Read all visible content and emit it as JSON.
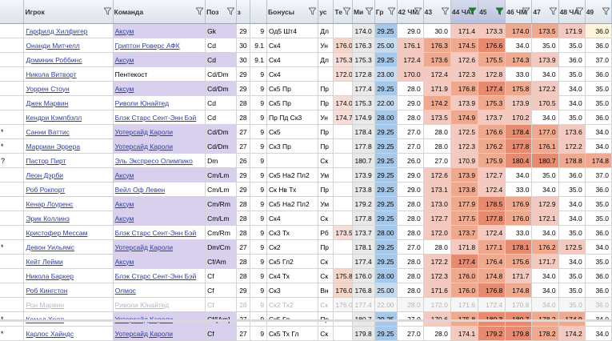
{
  "columns": [
    {
      "key": "mark",
      "label": "",
      "filter": false
    },
    {
      "key": "player",
      "label": "Игрок",
      "filter": true
    },
    {
      "key": "team",
      "label": "Команда",
      "filter": true
    },
    {
      "key": "pos",
      "label": "Поз",
      "filter": true
    },
    {
      "key": "age",
      "label": "з",
      "filter": false
    },
    {
      "key": "ca",
      "label": "",
      "filter": false
    },
    {
      "key": "bonus",
      "label": "Бонусы",
      "filter": true
    },
    {
      "key": "side",
      "label": "ус",
      "filter": false
    },
    {
      "key": "te",
      "label": "Те",
      "filter": true
    },
    {
      "key": "m",
      "label": "Ми",
      "filter": true
    },
    {
      "key": "gr",
      "label": "Гр",
      "filter": true
    },
    {
      "key": "h42",
      "label": "42 ЧМ",
      "filter": true
    },
    {
      "key": "h43",
      "label": "43",
      "filter": true
    },
    {
      "key": "h44",
      "label": "44 ЧА",
      "filter": true,
      "active": true
    },
    {
      "key": "h45",
      "label": "45",
      "filter": true,
      "active": true
    },
    {
      "key": "h46",
      "label": "46 ЧМ",
      "filter": true
    },
    {
      "key": "h47",
      "label": "47",
      "filter": true
    },
    {
      "key": "h48",
      "label": "48 ЧА",
      "filter": true
    },
    {
      "key": "h49",
      "label": "49",
      "filter": true
    }
  ],
  "rows": [
    {
      "mark": "",
      "player": "Гарфилд Хилфигер",
      "team": "Аксум",
      "team_hl": true,
      "pos": "Gk",
      "age": "29",
      "ca": "9",
      "bonus": "Од5 Шт4",
      "side": "Дл",
      "te": "",
      "m": "174.0",
      "gr": "29.25",
      "h42": "29.0",
      "h43": "30.0",
      "h44": "171.4",
      "h45": "173.3",
      "h46": "174.0",
      "h47": "173.5",
      "h48": "171.9",
      "h49": "36.0",
      "cls": [
        "",
        "",
        "",
        "",
        "",
        "",
        "",
        "",
        "",
        "c-grey",
        "c-blue",
        "c-white",
        "c-white",
        "c-red1",
        "c-red1",
        "c-red2",
        "c-red2",
        "c-red1",
        "c-yel"
      ]
    },
    {
      "mark": "",
      "player": "Онанди Митчелл",
      "team": "Гриптон Роверс АФК",
      "team_hl": false,
      "pos": "Cd",
      "age": "30",
      "ca": "9.1",
      "bonus": "Ск4",
      "side": "Ун",
      "te": "176.0",
      "m": "176.3",
      "gr": "25.00",
      "h42": "176.1",
      "h43": "176.3",
      "h44": "174.5",
      "h45": "176.6",
      "h46": "34.0",
      "h47": "35.0",
      "h48": "35.0",
      "h49": "36.0",
      "cls": [
        "",
        "",
        "",
        "",
        "",
        "",
        "",
        "",
        "c-peach",
        "c-grey",
        "c-lblue",
        "c-red1",
        "c-red2",
        "c-red2",
        "c-red3",
        "c-white",
        "c-white",
        "c-white",
        "c-white"
      ]
    },
    {
      "mark": "",
      "player": "Доминик Роббинс",
      "team": "Аксум",
      "team_hl": true,
      "pos": "Cd",
      "age": "30",
      "ca": "9.1",
      "bonus": "Ск4",
      "side": "Дл",
      "te": "175.3",
      "m": "175.3",
      "gr": "29.25",
      "h42": "172.4",
      "h43": "173.6",
      "h44": "172.6",
      "h45": "175.5",
      "h46": "174.3",
      "h47": "173.9",
      "h48": "36.0",
      "h49": "37.0",
      "cls": [
        "",
        "",
        "",
        "",
        "",
        "",
        "",
        "",
        "c-pink",
        "c-grey",
        "c-blue",
        "c-red1",
        "c-red2",
        "c-red1",
        "c-red2",
        "c-red2",
        "c-red1",
        "c-white",
        "c-white"
      ]
    },
    {
      "mark": "",
      "player": "Никола Витворт",
      "team": "Пентекост",
      "team_hl": false,
      "pos": "Cd/Dm",
      "age": "29",
      "ca": "9",
      "bonus": "Ск4",
      "side": "",
      "te": "172.0",
      "m": "172.8",
      "gr": "23.00",
      "h42": "170.0",
      "h43": "172.4",
      "h44": "172.3",
      "h45": "172.8",
      "h46": "33.0",
      "h47": "34.0",
      "h48": "35.0",
      "h49": "36.0",
      "cls": [
        "",
        "",
        "",
        "",
        "",
        "",
        "",
        "",
        "c-pink",
        "c-grey",
        "c-lblue",
        "c-red1",
        "c-red1",
        "c-red1",
        "c-red1",
        "c-white",
        "c-white",
        "c-white",
        "c-white"
      ]
    },
    {
      "mark": "",
      "player": "Уоррен Стоун",
      "team": "Аксум",
      "team_hl": true,
      "pos": "Cd/Dm",
      "age": "29",
      "ca": "9",
      "bonus": "Ск5 Пр",
      "side": "Пр",
      "te": "",
      "m": "177.4",
      "gr": "29.25",
      "h42": "28.0",
      "h43": "171.9",
      "h44": "176.8",
      "h45": "177.4",
      "h46": "175.8",
      "h47": "172.2",
      "h48": "34.0",
      "h49": "35.0",
      "cls": [
        "",
        "",
        "",
        "",
        "",
        "",
        "",
        "",
        "",
        "c-grey",
        "c-blue",
        "c-white",
        "c-red1",
        "c-red2",
        "c-red3",
        "c-red2",
        "c-red1",
        "c-white",
        "c-white"
      ]
    },
    {
      "mark": "",
      "player": "Джек Марвин",
      "team": "Риволи Юнайтед",
      "team_hl": false,
      "pos": "Cd",
      "age": "28",
      "ca": "9",
      "bonus": "Ск5 Пр",
      "side": "Пр",
      "te": "174.0",
      "m": "175.3",
      "gr": "22.00",
      "h42": "29.0",
      "h43": "174.2",
      "h44": "173.9",
      "h45": "175.3",
      "h46": "173.9",
      "h47": "170.5",
      "h48": "34.0",
      "h49": "35.0",
      "cls": [
        "",
        "",
        "",
        "",
        "",
        "",
        "",
        "",
        "c-pink",
        "c-grey",
        "c-lblue",
        "c-white",
        "c-red2",
        "c-red1",
        "c-red2",
        "c-red1",
        "c-red1",
        "c-white",
        "c-white"
      ]
    },
    {
      "mark": "",
      "player": "Кендри Кэмпбэлл",
      "team": "Блэк Старс Сент-Энн Бэй",
      "team_hl": false,
      "pos": "Cd",
      "age": "28",
      "ca": "9",
      "bonus": "Пр Пд Ск3",
      "side": "Ун",
      "te": "174.7",
      "m": "174.9",
      "gr": "28.00",
      "h42": "28.0",
      "h43": "173.5",
      "h44": "174.9",
      "h45": "173.7",
      "h46": "170.2",
      "h47": "34.0",
      "h48": "35.0",
      "h49": "36.0",
      "cls": [
        "",
        "",
        "",
        "",
        "",
        "",
        "",
        "",
        "c-pink",
        "c-grey",
        "c-blue",
        "c-white",
        "c-red1",
        "c-red2",
        "c-red1",
        "c-red1",
        "c-white",
        "c-white",
        "c-white"
      ]
    },
    {
      "mark": "*",
      "player": "Санни Ваттис",
      "team": "Уотерсайд Кароли",
      "team_hl": true,
      "pos": "Cd/Dm",
      "age": "27",
      "ca": "9",
      "bonus": "Ск5",
      "side": "Пр",
      "te": "",
      "m": "178.4",
      "gr": "29.25",
      "h42": "27.0",
      "h43": "28.0",
      "h44": "172.5",
      "h45": "176.6",
      "h46": "178.4",
      "h47": "177.0",
      "h48": "173.6",
      "h49": "34.0",
      "cls": [
        "",
        "",
        "",
        "",
        "",
        "",
        "",
        "",
        "",
        "c-grey",
        "c-blue",
        "c-white",
        "c-white",
        "c-red1",
        "c-red2",
        "c-red3",
        "c-red2",
        "c-red1",
        "c-white"
      ]
    },
    {
      "mark": "*",
      "player": "Марриан Эррера",
      "team": "Уотерсайд Кароли",
      "team_hl": true,
      "pos": "Cd/Dm",
      "age": "27",
      "ca": "9",
      "bonus": "Ск3 Пр",
      "side": "Пр",
      "te": "",
      "m": "177.8",
      "gr": "29.25",
      "h42": "27.0",
      "h43": "28.0",
      "h44": "172.3",
      "h45": "176.2",
      "h46": "177.8",
      "h47": "176.1",
      "h48": "172.2",
      "h49": "34.0",
      "cls": [
        "",
        "",
        "",
        "",
        "",
        "",
        "",
        "",
        "",
        "c-grey",
        "c-blue",
        "c-white",
        "c-white",
        "c-red1",
        "c-red2",
        "c-red3",
        "c-red2",
        "c-red1",
        "c-white"
      ]
    },
    {
      "mark": "?",
      "player": "Пастор Пирт",
      "team": "Эль Экспресо Олимпико",
      "team_hl": false,
      "pos": "Dm",
      "age": "26",
      "ca": "9",
      "bonus": "",
      "side": "Ск",
      "te": "",
      "m": "180.7",
      "gr": "29.25",
      "h42": "26.0",
      "h43": "27.0",
      "h44": "170.9",
      "h45": "175.9",
      "h46": "180.4",
      "h47": "180.7",
      "h48": "178.8",
      "h49": "174.8",
      "cls": [
        "",
        "",
        "",
        "",
        "",
        "",
        "",
        "",
        "",
        "c-grey",
        "c-blue",
        "c-white",
        "c-white",
        "c-red1",
        "c-red2",
        "c-red3",
        "c-red3",
        "c-red2",
        "c-red2"
      ]
    },
    {
      "mark": "",
      "player": "Леон Дэрби",
      "team": "Аксум",
      "team_hl": true,
      "pos": "Cm/Lm",
      "age": "29",
      "ca": "9",
      "bonus": "Ск5 На2 Пл2",
      "side": "Ум",
      "te": "",
      "m": "173.9",
      "gr": "29.25",
      "h42": "29.0",
      "h43": "172.6",
      "h44": "173.9",
      "h45": "172.7",
      "h46": "34.0",
      "h47": "35.0",
      "h48": "36.0",
      "h49": "37.0",
      "cls": [
        "",
        "",
        "",
        "",
        "",
        "",
        "",
        "",
        "",
        "c-grey",
        "c-blue",
        "c-white",
        "c-red1",
        "c-red2",
        "c-red1",
        "c-white",
        "c-white",
        "c-white",
        "c-white"
      ]
    },
    {
      "mark": "",
      "player": "Роб Рокпорт",
      "team": "Вейл Оф Левен",
      "team_hl": false,
      "pos": "Cm/Lm",
      "age": "29",
      "ca": "9",
      "bonus": "Ск Нв Тх",
      "side": "Пр",
      "te": "",
      "m": "173.8",
      "gr": "29.25",
      "h42": "29.0",
      "h43": "173.1",
      "h44": "173.8",
      "h45": "172.4",
      "h46": "33.0",
      "h47": "34.0",
      "h48": "35.0",
      "h49": "36.0",
      "cls": [
        "",
        "",
        "",
        "",
        "",
        "",
        "",
        "",
        "",
        "c-grey",
        "c-blue",
        "c-white",
        "c-red1",
        "c-red2",
        "c-red1",
        "c-white",
        "c-white",
        "c-white",
        "c-white"
      ]
    },
    {
      "mark": "",
      "player": "Кенар Лоуренс",
      "team": "Аксум",
      "team_hl": true,
      "pos": "Cm/Rm",
      "age": "28",
      "ca": "9",
      "bonus": "Ск5 На2 Пл2",
      "side": "Ум",
      "te": "",
      "m": "179.2",
      "gr": "29.25",
      "h42": "28.0",
      "h43": "173.0",
      "h44": "177.9",
      "h45": "178.5",
      "h46": "176.9",
      "h47": "172.9",
      "h48": "34.0",
      "h49": "35.0",
      "cls": [
        "",
        "",
        "",
        "",
        "",
        "",
        "",
        "",
        "",
        "c-grey",
        "c-blue",
        "c-white",
        "c-red1",
        "c-red2",
        "c-red3",
        "c-red2",
        "c-red1",
        "c-white",
        "c-white"
      ]
    },
    {
      "mark": "",
      "player": "Эрик Коллинз",
      "team": "Аксум",
      "team_hl": true,
      "pos": "Cm/Lm",
      "age": "28",
      "ca": "9",
      "bonus": "Ск4",
      "side": "Ск",
      "te": "",
      "m": "177.8",
      "gr": "29.25",
      "h42": "28.0",
      "h43": "172.7",
      "h44": "177.5",
      "h45": "177.8",
      "h46": "176.0",
      "h47": "172.1",
      "h48": "34.0",
      "h49": "35.0",
      "cls": [
        "",
        "",
        "",
        "",
        "",
        "",
        "",
        "",
        "",
        "c-grey",
        "c-blue",
        "c-white",
        "c-red1",
        "c-red2",
        "c-red3",
        "c-red2",
        "c-red1",
        "c-white",
        "c-white"
      ]
    },
    {
      "mark": "",
      "player": "Кристофер Мессам",
      "team": "Блэк Старс Сент-Энн Бэй",
      "team_hl": false,
      "pos": "Cm/Rm",
      "age": "28",
      "ca": "9",
      "bonus": "Ск3 Тх",
      "side": "Рб",
      "te": "173.5",
      "m": "173.7",
      "gr": "28.00",
      "h42": "28.0",
      "h43": "172.0",
      "h44": "173.7",
      "h45": "172.4",
      "h46": "33.0",
      "h47": "34.0",
      "h48": "35.0",
      "h49": "36.0",
      "cls": [
        "",
        "",
        "",
        "",
        "",
        "",
        "",
        "",
        "c-pink",
        "c-grey",
        "c-blue",
        "c-white",
        "c-red1",
        "c-red2",
        "c-red1",
        "c-white",
        "c-white",
        "c-white",
        "c-white"
      ]
    },
    {
      "mark": "*",
      "player": "Девон Уильямс",
      "team": "Уотерсайд Кароли",
      "team_hl": true,
      "pos": "Dm/Cm",
      "age": "27",
      "ca": "9",
      "bonus": "Ск2",
      "side": "Пр",
      "te": "",
      "m": "178.1",
      "gr": "29.25",
      "h42": "27.0",
      "h43": "28.0",
      "h44": "171.8",
      "h45": "177.1",
      "h46": "178.1",
      "h47": "176.2",
      "h48": "172.5",
      "h49": "34.0",
      "cls": [
        "",
        "",
        "",
        "",
        "",
        "",
        "",
        "",
        "",
        "c-grey",
        "c-blue",
        "c-white",
        "c-white",
        "c-red1",
        "c-red2",
        "c-red3",
        "c-red2",
        "c-red1",
        "c-white"
      ]
    },
    {
      "mark": "",
      "player": "Кейт Лейми",
      "team": "Аксум",
      "team_hl": true,
      "pos": "Cf/Am",
      "age": "28",
      "ca": "9",
      "bonus": "Ск5 Гл2",
      "side": "Ск",
      "te": "",
      "m": "177.4",
      "gr": "29.25",
      "h42": "28.0",
      "h43": "172.2",
      "h44": "177.4",
      "h45": "176.4",
      "h46": "175.6",
      "h47": "171.7",
      "h48": "34.0",
      "h49": "35.0",
      "cls": [
        "",
        "",
        "",
        "",
        "",
        "",
        "",
        "",
        "",
        "c-grey",
        "c-blue",
        "c-white",
        "c-red1",
        "c-red3",
        "c-red2",
        "c-red2",
        "c-red1",
        "c-white",
        "c-white"
      ]
    },
    {
      "mark": "",
      "player": "Никола Баркер",
      "team": "Блэк Старс Сент-Энн Бэй",
      "team_hl": false,
      "pos": "Cf",
      "age": "28",
      "ca": "9",
      "bonus": "Ск4 Тх",
      "side": "Ск",
      "te": "175.8",
      "m": "176.0",
      "gr": "28.00",
      "h42": "28.0",
      "h43": "172.3",
      "h44": "176.0",
      "h45": "174.8",
      "h46": "171.7",
      "h47": "34.0",
      "h48": "35.0",
      "h49": "36.0",
      "cls": [
        "",
        "",
        "",
        "",
        "",
        "",
        "",
        "",
        "c-peach",
        "c-grey",
        "c-blue",
        "c-white",
        "c-red1",
        "c-red2",
        "c-red2",
        "c-red1",
        "c-white",
        "c-white",
        "c-white"
      ]
    },
    {
      "mark": "",
      "player": "Роб Кингстон",
      "team": "Олмос",
      "team_hl": false,
      "pos": "Cf",
      "age": "29",
      "ca": "9",
      "bonus": "Ск3",
      "side": "Вн",
      "te": "176.0",
      "m": "176.8",
      "gr": "25.00",
      "h42": "28.0",
      "h43": "171.6",
      "h44": "176.0",
      "h45": "176.8",
      "h46": "174.8",
      "h47": "34.0",
      "h48": "35.0",
      "h49": "36.0",
      "cls": [
        "",
        "",
        "",
        "",
        "",
        "",
        "",
        "",
        "c-peach",
        "c-grey",
        "c-lblue",
        "c-white",
        "c-red1",
        "c-red2",
        "c-red3",
        "c-red2",
        "c-white",
        "c-white",
        "c-white"
      ]
    },
    {
      "mark": "",
      "player": "Рон Марвин",
      "team": "Риволи Юнайтед",
      "team_hl": false,
      "greyed": true,
      "pos": "Cf",
      "age": "28",
      "ca": "9",
      "bonus": "Ск2 Тх2",
      "side": "Ск",
      "te": "176.0",
      "m": "177.4",
      "gr": "22.00",
      "h42": "28.0",
      "h43": "172.0",
      "h44": "171.6",
      "h45": "172.4",
      "h46": "170.8",
      "h47": "34.0",
      "h48": "35.0",
      "h49": "36.0",
      "cls": [
        "",
        "",
        "",
        "",
        "",
        "",
        "",
        "",
        "c-peach",
        "c-grey",
        "c-lblue",
        "c-white",
        "c-red1",
        "c-red2",
        "c-red2",
        "c-red2",
        "c-white",
        "c-white",
        "c-white"
      ]
    },
    {
      "mark": "*",
      "player": "Кемал Холл",
      "team": "Уотерсайд Кароли",
      "team_hl": true,
      "pos": "Cf/[Am]",
      "age": "27",
      "ca": "9",
      "bonus": "Ск5 Гл",
      "side": "Пр",
      "te": "",
      "m": "180.7",
      "gr": "29.25",
      "h42": "27.0",
      "h43": "170.6",
      "h44": "175.8",
      "h45": "180.3",
      "h46": "180.7",
      "h47": "178.2",
      "h48": "174.9",
      "h49": "34.0",
      "cls": [
        "",
        "",
        "",
        "",
        "",
        "",
        "",
        "",
        "",
        "c-grey",
        "c-blue",
        "c-white",
        "c-red1",
        "c-red2",
        "c-red3",
        "c-red3",
        "c-red2",
        "c-red2",
        "c-white"
      ]
    },
    {
      "mark": "*",
      "player": "Карлос Хайндс",
      "team": "Уотерсайд Кароли",
      "team_hl": true,
      "pos": "Cf",
      "age": "27",
      "ca": "9",
      "bonus": "Ск5 Тх Гл",
      "side": "Ск",
      "te": "",
      "m": "179.8",
      "gr": "29.25",
      "h42": "27.0",
      "h43": "28.0",
      "h44": "174.1",
      "h45": "179.2",
      "h46": "179.8",
      "h47": "178.2",
      "h48": "174.2",
      "h49": "34.0",
      "cls": [
        "",
        "",
        "",
        "",
        "",
        "",
        "",
        "",
        "",
        "c-grey",
        "c-blue",
        "c-white",
        "c-white",
        "c-red1",
        "c-red3",
        "c-red3",
        "c-red2",
        "c-red1",
        "c-white"
      ]
    }
  ]
}
